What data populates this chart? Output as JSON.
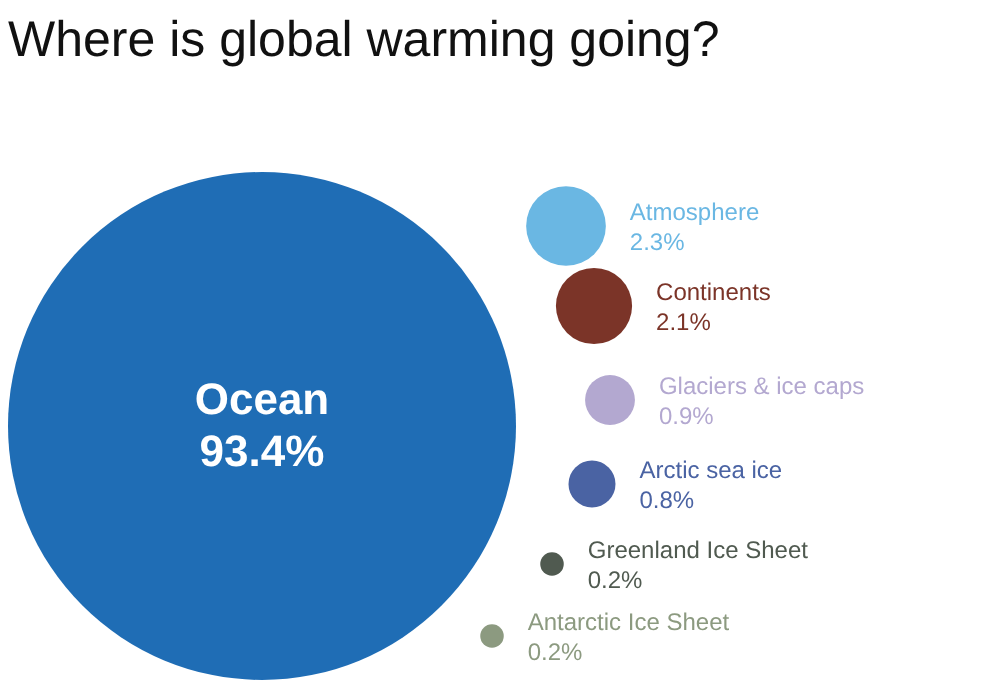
{
  "chart_data": {
    "type": "other",
    "title": "Where is global warming going?",
    "categories": [
      "Ocean",
      "Atmosphere",
      "Continents",
      "Glaciers & ice caps",
      "Arctic sea ice",
      "Greenland Ice Sheet",
      "Antarctic Ice Sheet"
    ],
    "values": [
      93.4,
      2.3,
      2.1,
      0.9,
      0.8,
      0.2,
      0.2
    ],
    "value_labels": [
      "93.4%",
      "2.3%",
      "2.1%",
      "0.9%",
      "0.8%",
      "0.2%",
      "0.2%"
    ],
    "colors": [
      "#1f6db5",
      "#6ab7e3",
      "#7b3428",
      "#b3a8d0",
      "#4a63a3",
      "#505a50",
      "#8c9a80"
    ]
  }
}
